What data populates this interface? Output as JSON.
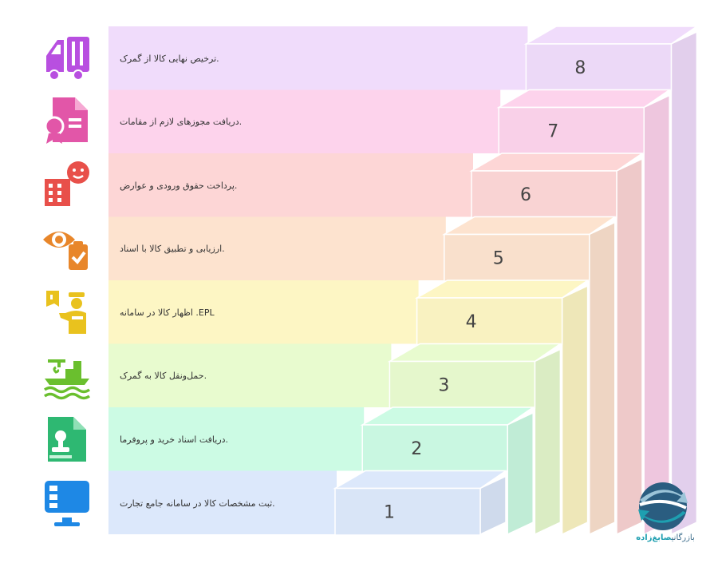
{
  "steps": [
    {
      "number": "1",
      "text": ".ثبت مشخصات کالا در سامانه جامع تجارت",
      "band": "#dce8fb",
      "icon": "computer-monitor-icon",
      "icon_color": "#1e88e5"
    },
    {
      "number": "2",
      "text": ".دریافت اسناد خرید و پروفرما",
      "band": "#ccfbe4",
      "icon": "document-stamp-icon",
      "icon_color": "#2eb872"
    },
    {
      "number": "3",
      "text": ".حمل‌ونقل کالا به گمرک",
      "band": "#e8fbcf",
      "icon": "cargo-ship-crane-icon",
      "icon_color": "#6abf2e"
    },
    {
      "number": "4",
      "text": "EPL. اظهار کالا در سامانه",
      "band": "#fdf6c4",
      "icon": "customs-officer-icon",
      "icon_color": "#e9c21e"
    },
    {
      "number": "5",
      "text": ".ارزیابی و تطبیق کالا با اسناد",
      "band": "#fde3cf",
      "icon": "inspection-eye-clipboard-icon",
      "icon_color": "#e8862a"
    },
    {
      "number": "6",
      "text": ".پرداخت حقوق ورودی و عوارض",
      "band": "#fdd6d6",
      "icon": "building-payment-icon",
      "icon_color": "#e8504a"
    },
    {
      "number": "7",
      "text": ".دریافت مجوزهای لازم از مقامات",
      "band": "#fdd3ec",
      "icon": "certificate-document-icon",
      "icon_color": "#e256a8"
    },
    {
      "number": "8",
      "text": ".ترخیص نهایی کالا از گمرک",
      "band": "#f0dcfb",
      "icon": "truck-icon",
      "icon_color": "#b84fe0"
    }
  ],
  "logo": {
    "icon": "trade-arrows-logo-icon",
    "text_a": "بازرگانی",
    "text_b": "صابغ‌زاده"
  }
}
